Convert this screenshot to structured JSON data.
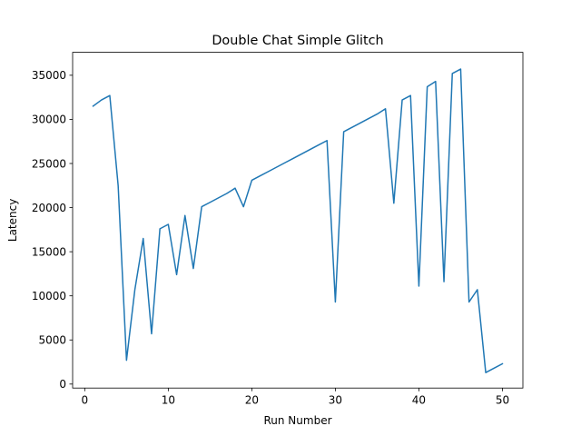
{
  "chart_data": {
    "type": "line",
    "title": "Double Chat Simple Glitch",
    "xlabel": "Run Number",
    "ylabel": "Latency",
    "xlim": [
      -1.45,
      52.45
    ],
    "ylim": [
      -450,
      37600
    ],
    "xticks": [
      0,
      10,
      20,
      30,
      40,
      50
    ],
    "yticks": [
      0,
      5000,
      10000,
      15000,
      20000,
      25000,
      30000,
      35000
    ],
    "grid": false,
    "series": [
      {
        "color": "#1f77b4",
        "x": [
          1,
          2,
          3,
          4,
          5,
          6,
          7,
          8,
          9,
          10,
          11,
          12,
          13,
          14,
          15,
          16,
          17,
          18,
          19,
          20,
          21,
          22,
          23,
          24,
          25,
          26,
          27,
          28,
          29,
          30,
          31,
          32,
          33,
          34,
          35,
          36,
          37,
          38,
          39,
          40,
          41,
          42,
          43,
          44,
          45,
          46,
          47,
          48,
          49,
          50
        ],
        "y": [
          31500,
          32200,
          32700,
          22500,
          2700,
          10700,
          16500,
          5700,
          17600,
          18100,
          12400,
          19100,
          13100,
          20100,
          20600,
          21100,
          21600,
          22200,
          20100,
          23100,
          23600,
          24100,
          24600,
          25100,
          25600,
          26100,
          26600,
          27100,
          27600,
          9300,
          28600,
          29100,
          29600,
          30100,
          30600,
          31200,
          20500,
          32200,
          32700,
          11100,
          33700,
          34300,
          11600,
          35200,
          35700,
          9300,
          10700,
          1300,
          1800,
          2300
        ]
      }
    ]
  }
}
